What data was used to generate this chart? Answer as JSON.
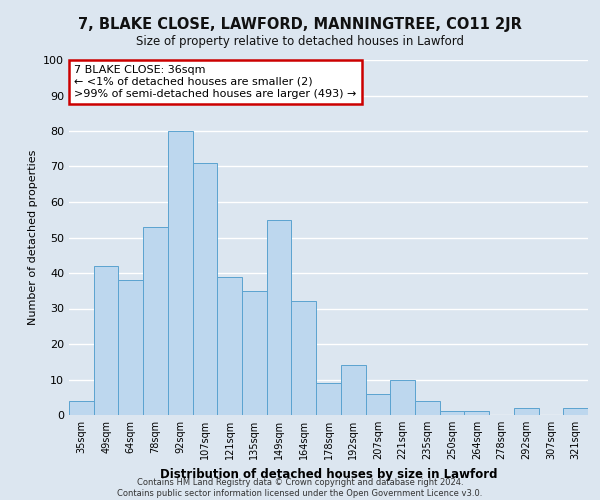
{
  "title": "7, BLAKE CLOSE, LAWFORD, MANNINGTREE, CO11 2JR",
  "subtitle": "Size of property relative to detached houses in Lawford",
  "xlabel": "Distribution of detached houses by size in Lawford",
  "ylabel": "Number of detached properties",
  "bar_color": "#bdd7ee",
  "bar_edge_color": "#5ba3d0",
  "plot_bg_color": "#dce6f0",
  "fig_bg_color": "#dce6f0",
  "grid_color": "#ffffff",
  "categories": [
    "35sqm",
    "49sqm",
    "64sqm",
    "78sqm",
    "92sqm",
    "107sqm",
    "121sqm",
    "135sqm",
    "149sqm",
    "164sqm",
    "178sqm",
    "192sqm",
    "207sqm",
    "221sqm",
    "235sqm",
    "250sqm",
    "264sqm",
    "278sqm",
    "292sqm",
    "307sqm",
    "321sqm"
  ],
  "values": [
    4,
    42,
    38,
    53,
    80,
    71,
    39,
    35,
    55,
    32,
    9,
    14,
    6,
    10,
    4,
    1,
    1,
    0,
    2,
    0,
    2
  ],
  "ylim": [
    0,
    100
  ],
  "annotation_title": "7 BLAKE CLOSE: 36sqm",
  "annotation_line2": "← <1% of detached houses are smaller (2)",
  "annotation_line3": ">99% of semi-detached houses are larger (493) →",
  "annotation_box_color": "#ffffff",
  "annotation_border_color": "#cc0000",
  "footer_line1": "Contains HM Land Registry data © Crown copyright and database right 2024.",
  "footer_line2": "Contains public sector information licensed under the Open Government Licence v3.0."
}
